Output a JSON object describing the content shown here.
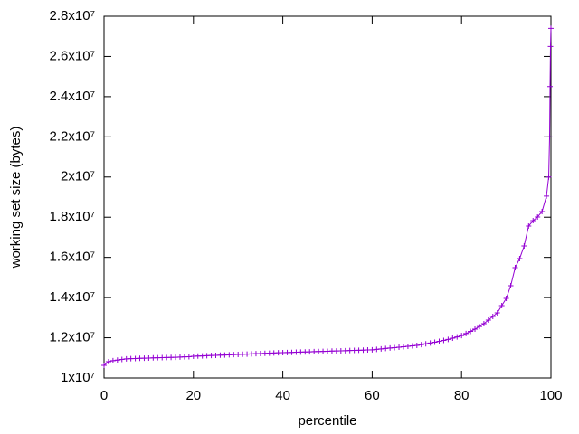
{
  "chart_data": {
    "type": "line",
    "xlabel": "percentile",
    "ylabel": "working set size (bytes)",
    "color": "#9400d3",
    "x": [
      0,
      1,
      2,
      3,
      4,
      5,
      6,
      7,
      8,
      9,
      10,
      11,
      12,
      13,
      14,
      15,
      16,
      17,
      18,
      19,
      20,
      21,
      22,
      23,
      24,
      25,
      26,
      27,
      28,
      29,
      30,
      31,
      32,
      33,
      34,
      35,
      36,
      37,
      38,
      39,
      40,
      41,
      42,
      43,
      44,
      45,
      46,
      47,
      48,
      49,
      50,
      51,
      52,
      53,
      54,
      55,
      56,
      57,
      58,
      59,
      60,
      61,
      62,
      63,
      64,
      65,
      66,
      67,
      68,
      69,
      70,
      71,
      72,
      73,
      74,
      75,
      76,
      77,
      78,
      79,
      80,
      81,
      82,
      83,
      84,
      85,
      86,
      87,
      88,
      89,
      90,
      91,
      92,
      93,
      94,
      95,
      96,
      97,
      98,
      99,
      99.5,
      99.7,
      99.8,
      99.9,
      100
    ],
    "values": [
      10630000,
      10810000,
      10860000,
      10890000,
      10920000,
      10950000,
      10960000,
      10970000,
      10980000,
      10985000,
      10990000,
      11000000,
      11005000,
      11010000,
      11020000,
      11025000,
      11030000,
      11040000,
      11050000,
      11060000,
      11080000,
      11090000,
      11099000,
      11108000,
      11117000,
      11126000,
      11135000,
      11144000,
      11153000,
      11162000,
      11171000,
      11180000,
      11189000,
      11198000,
      11207000,
      11216000,
      11225000,
      11234000,
      11243000,
      11252000,
      11260000,
      11267000,
      11274000,
      11281000,
      11288000,
      11295000,
      11302000,
      11309000,
      11316000,
      11323000,
      11330000,
      11337000,
      11344000,
      11351000,
      11358000,
      11365000,
      11372000,
      11379000,
      11386000,
      11393000,
      11400000,
      11422000,
      11444000,
      11466000,
      11488000,
      11510000,
      11532000,
      11554000,
      11576000,
      11598000,
      11620000,
      11660000,
      11700000,
      11740000,
      11780000,
      11820000,
      11870000,
      11920000,
      11980000,
      12040000,
      12110000,
      12210000,
      12320000,
      12430000,
      12560000,
      12700000,
      12880000,
      13060000,
      13240000,
      13600000,
      13960000,
      14590000,
      15490000,
      15940000,
      16570000,
      17560000,
      17830000,
      18010000,
      18280000,
      19050000,
      20000000,
      22000000,
      24500000,
      26500000,
      27400000
    ],
    "xlim": [
      0,
      100
    ],
    "xticks": [
      0,
      20,
      40,
      60,
      80,
      100
    ],
    "ylim": [
      10000000,
      28000000
    ],
    "yticks": [
      {
        "value": 10000000,
        "label": "1x10⁷"
      },
      {
        "value": 12000000,
        "label": "1.2x10⁷"
      },
      {
        "value": 14000000,
        "label": "1.4x10⁷"
      },
      {
        "value": 16000000,
        "label": "1.6x10⁷"
      },
      {
        "value": 18000000,
        "label": "1.8x10⁷"
      },
      {
        "value": 20000000,
        "label": "2x10⁷"
      },
      {
        "value": 22000000,
        "label": "2.2x10⁷"
      },
      {
        "value": 24000000,
        "label": "2.4x10⁷"
      },
      {
        "value": 26000000,
        "label": "2.6x10⁷"
      },
      {
        "value": 28000000,
        "label": "2.8x10⁷"
      }
    ]
  }
}
